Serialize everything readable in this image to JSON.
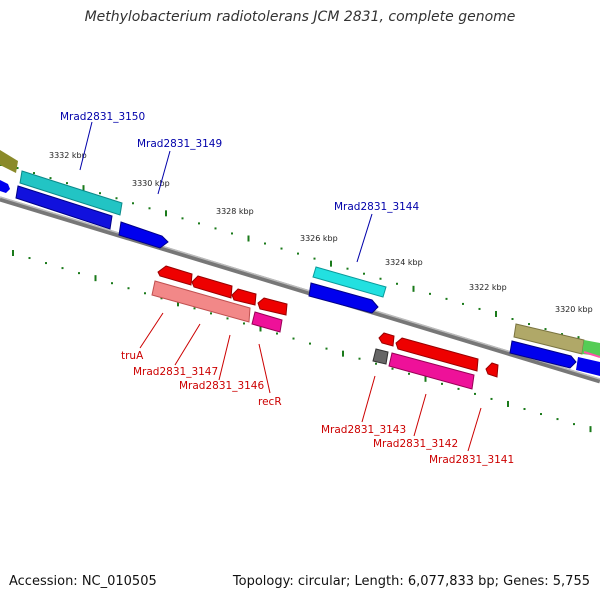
{
  "title": "Methylobacterium radiotolerans JCM 2831, complete genome",
  "footer": {
    "accession": "Accession: NC_010505",
    "summary": "Topology: circular; Length: 6,077,833 bp; Genes: 5,755"
  },
  "colors": {
    "forward_label": "#0000aa",
    "reverse_label": "#cc0000",
    "tick": "#1a7a1a"
  },
  "scale_labels": [
    "3332 kbp",
    "3330 kbp",
    "3328 kbp",
    "3326 kbp",
    "3324 kbp",
    "3322 kbp",
    "3320 kbp"
  ],
  "gene_labels": {
    "mrad2831_3150": "Mrad2831_3150",
    "mrad2831_3149": "Mrad2831_3149",
    "mrad2831_3144": "Mrad2831_3144",
    "trua": "truA",
    "mrad2831_3147": "Mrad2831_3147",
    "mrad2831_3146": "Mrad2831_3146",
    "recr": "recR",
    "mrad2831_3143": "Mrad2831_3143",
    "mrad2831_3142": "Mrad2831_3142",
    "mrad2831_3141": "Mrad2831_3141"
  }
}
